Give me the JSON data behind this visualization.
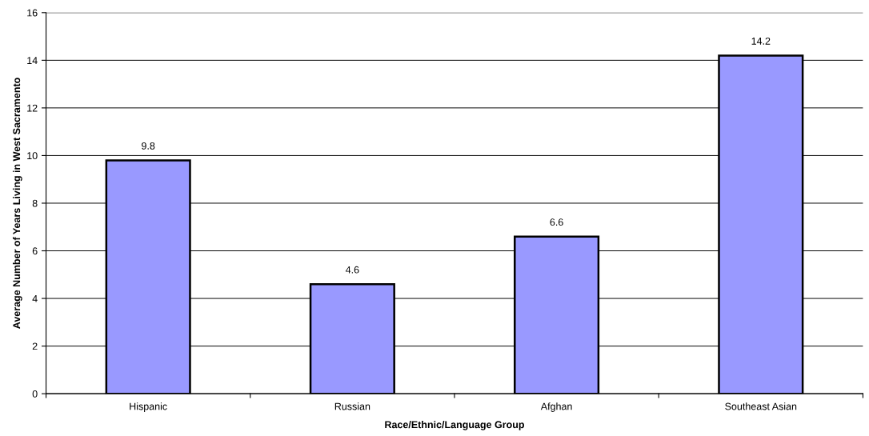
{
  "chart_data": {
    "type": "bar",
    "xlabel": "Race/Ethnic/Language Group",
    "ylabel": "Average Number of Years Living in West Sacramento",
    "categories": [
      "Hispanic",
      "Russian",
      "Afghan",
      "Southeast Asian"
    ],
    "values": [
      9.8,
      4.6,
      6.6,
      14.2
    ],
    "color": "#9999ff",
    "ylim": [
      0,
      16
    ],
    "yticks": [
      0,
      2,
      4,
      6,
      8,
      10,
      12,
      14,
      16
    ],
    "grid": "y",
    "data_labels": true,
    "legend": false
  }
}
